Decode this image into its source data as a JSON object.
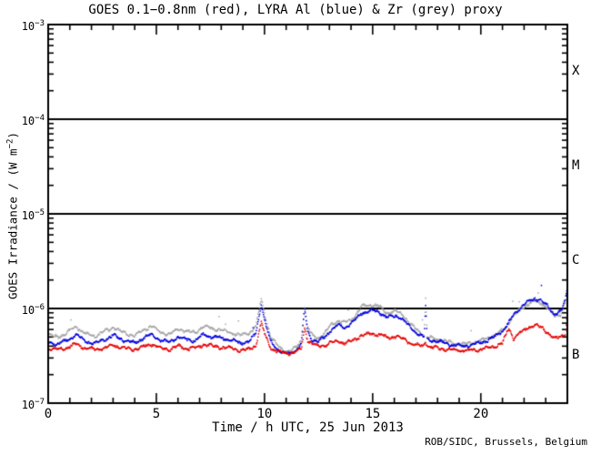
{
  "title": "GOES 0.1−0.8nm (red), LYRA Al (blue) & Zr (grey) proxy",
  "credit": "ROB/SIDC, Brussels, Belgium",
  "axes": {
    "x_label": "Time / h UTC, 25 Jun 2013",
    "y_label": {
      "prefix": "GOES Irradiance / (W m",
      "sup": "−2",
      "suffix": ")"
    },
    "x_tick_labels": [
      "0",
      "5",
      "10",
      "15",
      "20"
    ],
    "x_tick_values": [
      0,
      5,
      10,
      15,
      20
    ],
    "y_tick_base": "10",
    "y_tick_exponents": [
      "−3",
      "−4",
      "−5",
      "−6",
      "−7"
    ],
    "y_tick_values": [
      0.001,
      0.0001,
      1e-05,
      1e-06,
      1e-07
    ]
  },
  "flare_classes": [
    {
      "label": "X",
      "upper_exp": -3,
      "lower_exp": -4
    },
    {
      "label": "M",
      "upper_exp": -4,
      "lower_exp": -5
    },
    {
      "label": "C",
      "upper_exp": -5,
      "lower_exp": -6
    },
    {
      "label": "B",
      "upper_exp": -6,
      "lower_exp": -7
    }
  ],
  "colors": {
    "frame": "#000000",
    "text": "#000000",
    "background": "#ffffff",
    "goes_red": "#e60000",
    "lyra_al_blue": "#0000dd",
    "lyra_zr_grey": "#a6a6a6"
  },
  "chart_data": {
    "type": "scatter",
    "title": "GOES 0.1−0.8nm (red), LYRA Al (blue) & Zr (grey) proxy",
    "xlabel": "Time / h UTC, 25 Jun 2013",
    "ylabel": "GOES Irradiance / (W m−2)",
    "date": "25 Jun 2013",
    "x_range": [
      0,
      24
    ],
    "x_minor_step": 1,
    "y_scale": "log",
    "y_range": [
      1e-07,
      0.001
    ],
    "hlines": [
      0.0001,
      1e-05,
      1e-06
    ],
    "grid": false,
    "legend_position": "in-title",
    "style": {
      "dot_step_hours": 0.025,
      "dot_size_px": 1.5,
      "log_jitter": 0.02
    },
    "series": [
      {
        "name": "LYRA Zr proxy (grey)",
        "color": "#a6a6a6",
        "outlier_prob": 0.012,
        "points": [
          [
            0,
            5.3e-07
          ],
          [
            0.4,
            5e-07
          ],
          [
            0.8,
            5.4e-07
          ],
          [
            1.3,
            6.5e-07
          ],
          [
            1.7,
            5.4e-07
          ],
          [
            2.2,
            5.1e-07
          ],
          [
            2.6,
            5.7e-07
          ],
          [
            3.0,
            6.3e-07
          ],
          [
            3.5,
            5.5e-07
          ],
          [
            4.0,
            5.2e-07
          ],
          [
            4.5,
            6.1e-07
          ],
          [
            4.8,
            6.5e-07
          ],
          [
            5.2,
            5.6e-07
          ],
          [
            5.6,
            5.3e-07
          ],
          [
            6.0,
            6.1e-07
          ],
          [
            6.4,
            5.7e-07
          ],
          [
            6.8,
            5.6e-07
          ],
          [
            7.2,
            6.5e-07
          ],
          [
            7.6,
            6.1e-07
          ],
          [
            8.0,
            5.9e-07
          ],
          [
            8.5,
            5.5e-07
          ],
          [
            8.9,
            5.2e-07
          ],
          [
            9.3,
            5.5e-07
          ],
          [
            9.6,
            6.5e-07
          ],
          [
            9.85,
            1.25e-06
          ],
          [
            10.05,
            8e-07
          ],
          [
            10.3,
            5e-07
          ],
          [
            10.6,
            4e-07
          ],
          [
            10.9,
            3.6e-07
          ],
          [
            11.2,
            3.5e-07
          ],
          [
            11.5,
            4e-07
          ],
          [
            11.7,
            4.6e-07
          ],
          [
            11.85,
            1.05e-06
          ],
          [
            12.0,
            6.2e-07
          ],
          [
            12.2,
            5.2e-07
          ],
          [
            12.5,
            4.9e-07
          ],
          [
            12.8,
            5.5e-07
          ],
          [
            13.1,
            6.8e-07
          ],
          [
            13.4,
            7.4e-07
          ],
          [
            13.7,
            7e-07
          ],
          [
            14.1,
            8e-07
          ],
          [
            14.5,
            1.05e-06
          ],
          [
            14.9,
            1.1e-06
          ],
          [
            15.3,
            1.05e-06
          ],
          [
            15.7,
            9e-07
          ],
          [
            16.1,
            9.4e-07
          ],
          [
            16.4,
            8.6e-07
          ],
          [
            16.7,
            7e-07
          ],
          [
            17.0,
            6e-07
          ],
          [
            17.3,
            5.5e-07
          ],
          [
            17.38,
            5.2e-07
          ],
          [
            17.45,
            1.25e-06
          ],
          [
            17.52,
            5e-07
          ],
          [
            17.8,
            4.8e-07
          ],
          [
            18.2,
            4.6e-07
          ],
          [
            18.7,
            4.3e-07
          ],
          [
            19.2,
            4.2e-07
          ],
          [
            19.7,
            4.4e-07
          ],
          [
            20.2,
            4.7e-07
          ],
          [
            20.7,
            5.3e-07
          ],
          [
            21.1,
            6.2e-07
          ],
          [
            21.5,
            8.2e-07
          ],
          [
            21.9,
            1.02e-06
          ],
          [
            22.2,
            1.12e-06
          ],
          [
            22.5,
            1.2e-06
          ],
          [
            22.8,
            1.14e-06
          ],
          [
            23.1,
            1e-06
          ],
          [
            23.4,
            8.3e-07
          ],
          [
            23.7,
            8.8e-07
          ],
          [
            23.9,
            1.15e-06
          ],
          [
            24,
            1.6e-06
          ]
        ]
      },
      {
        "name": "LYRA Al proxy (blue)",
        "color": "#0000dd",
        "outlier_prob": 0.004,
        "points": [
          [
            0,
            4.4e-07
          ],
          [
            0.4,
            4.2e-07
          ],
          [
            0.8,
            4.5e-07
          ],
          [
            1.3,
            5.3e-07
          ],
          [
            1.7,
            4.5e-07
          ],
          [
            2.2,
            4.3e-07
          ],
          [
            2.6,
            4.7e-07
          ],
          [
            3.0,
            5.2e-07
          ],
          [
            3.5,
            4.6e-07
          ],
          [
            4.0,
            4.3e-07
          ],
          [
            4.5,
            5e-07
          ],
          [
            4.8,
            5.3e-07
          ],
          [
            5.2,
            4.6e-07
          ],
          [
            5.6,
            4.4e-07
          ],
          [
            6.0,
            5e-07
          ],
          [
            6.4,
            4.7e-07
          ],
          [
            6.8,
            4.6e-07
          ],
          [
            7.2,
            5.3e-07
          ],
          [
            7.6,
            5e-07
          ],
          [
            8.0,
            4.9e-07
          ],
          [
            8.5,
            4.6e-07
          ],
          [
            8.9,
            4.3e-07
          ],
          [
            9.3,
            4.5e-07
          ],
          [
            9.6,
            5.4e-07
          ],
          [
            9.85,
            1.12e-06
          ],
          [
            10.05,
            6.8e-07
          ],
          [
            10.3,
            4.4e-07
          ],
          [
            10.6,
            3.7e-07
          ],
          [
            10.9,
            3.4e-07
          ],
          [
            11.2,
            3.3e-07
          ],
          [
            11.5,
            3.7e-07
          ],
          [
            11.7,
            4.2e-07
          ],
          [
            11.85,
            9.8e-07
          ],
          [
            12.0,
            5.6e-07
          ],
          [
            12.2,
            4.7e-07
          ],
          [
            12.5,
            4.5e-07
          ],
          [
            12.8,
            5e-07
          ],
          [
            13.1,
            6e-07
          ],
          [
            13.4,
            6.6e-07
          ],
          [
            13.7,
            6.3e-07
          ],
          [
            14.1,
            7.2e-07
          ],
          [
            14.5,
            9e-07
          ],
          [
            14.9,
            9.5e-07
          ],
          [
            15.3,
            9.2e-07
          ],
          [
            15.7,
            8e-07
          ],
          [
            16.1,
            8.4e-07
          ],
          [
            16.4,
            7.7e-07
          ],
          [
            16.7,
            6.4e-07
          ],
          [
            17.0,
            5.6e-07
          ],
          [
            17.3,
            5.1e-07
          ],
          [
            17.38,
            4.9e-07
          ],
          [
            17.45,
            1.08e-06
          ],
          [
            17.52,
            4.7e-07
          ],
          [
            17.8,
            4.6e-07
          ],
          [
            18.2,
            4.4e-07
          ],
          [
            18.7,
            4.1e-07
          ],
          [
            19.2,
            4e-07
          ],
          [
            19.7,
            4.2e-07
          ],
          [
            20.2,
            4.5e-07
          ],
          [
            20.7,
            5.1e-07
          ],
          [
            21.1,
            6.1e-07
          ],
          [
            21.5,
            8.4e-07
          ],
          [
            21.9,
            1.06e-06
          ],
          [
            22.2,
            1.18e-06
          ],
          [
            22.5,
            1.28e-06
          ],
          [
            22.8,
            1.2e-06
          ],
          [
            23.1,
            1.05e-06
          ],
          [
            23.4,
            8.8e-07
          ],
          [
            23.7,
            9.3e-07
          ],
          [
            23.9,
            1.2e-06
          ],
          [
            24,
            1.7e-06
          ]
        ]
      },
      {
        "name": "GOES 0.1−0.8nm (red)",
        "color": "#e60000",
        "outlier_prob": 0,
        "points": [
          [
            0,
            3.8e-07
          ],
          [
            0.4,
            3.7e-07
          ],
          [
            0.8,
            3.8e-07
          ],
          [
            1.3,
            4.2e-07
          ],
          [
            1.7,
            3.8e-07
          ],
          [
            2.2,
            3.7e-07
          ],
          [
            2.6,
            3.8e-07
          ],
          [
            3.0,
            4.1e-07
          ],
          [
            3.5,
            3.8e-07
          ],
          [
            4.0,
            3.7e-07
          ],
          [
            4.5,
            4e-07
          ],
          [
            4.8,
            4.2e-07
          ],
          [
            5.2,
            3.8e-07
          ],
          [
            5.6,
            3.7e-07
          ],
          [
            6.0,
            4e-07
          ],
          [
            6.4,
            3.8e-07
          ],
          [
            6.8,
            3.8e-07
          ],
          [
            7.2,
            4.2e-07
          ],
          [
            7.6,
            4e-07
          ],
          [
            8.0,
            3.9e-07
          ],
          [
            8.5,
            3.8e-07
          ],
          [
            8.9,
            3.6e-07
          ],
          [
            9.3,
            3.7e-07
          ],
          [
            9.6,
            4.1e-07
          ],
          [
            9.85,
            7e-07
          ],
          [
            10.05,
            5e-07
          ],
          [
            10.3,
            3.8e-07
          ],
          [
            10.6,
            3.5e-07
          ],
          [
            10.9,
            3.4e-07
          ],
          [
            11.2,
            3.4e-07
          ],
          [
            11.5,
            3.5e-07
          ],
          [
            11.7,
            3.7e-07
          ],
          [
            11.85,
            6.3e-07
          ],
          [
            12.0,
            4.6e-07
          ],
          [
            12.2,
            4.2e-07
          ],
          [
            12.5,
            4e-07
          ],
          [
            12.8,
            4.1e-07
          ],
          [
            13.1,
            4.4e-07
          ],
          [
            13.4,
            4.5e-07
          ],
          [
            13.7,
            4.3e-07
          ],
          [
            14.1,
            4.6e-07
          ],
          [
            14.5,
            5.2e-07
          ],
          [
            14.9,
            5.4e-07
          ],
          [
            15.3,
            5.3e-07
          ],
          [
            15.7,
            4.9e-07
          ],
          [
            16.1,
            5.1e-07
          ],
          [
            16.4,
            4.8e-07
          ],
          [
            16.7,
            4.4e-07
          ],
          [
            17.0,
            4.1e-07
          ],
          [
            17.3,
            4e-07
          ],
          [
            17.45,
            4.4e-07
          ],
          [
            17.6,
            3.9e-07
          ],
          [
            18.0,
            3.8e-07
          ],
          [
            18.5,
            3.7e-07
          ],
          [
            19.0,
            3.6e-07
          ],
          [
            19.5,
            3.6e-07
          ],
          [
            20.0,
            3.7e-07
          ],
          [
            20.5,
            3.9e-07
          ],
          [
            21.0,
            4.3e-07
          ],
          [
            21.3,
            6.2e-07
          ],
          [
            21.5,
            4.8e-07
          ],
          [
            21.8,
            5.5e-07
          ],
          [
            22.2,
            6.3e-07
          ],
          [
            22.5,
            6.6e-07
          ],
          [
            22.8,
            6.3e-07
          ],
          [
            23.1,
            5.6e-07
          ],
          [
            23.4,
            4.8e-07
          ],
          [
            23.7,
            5e-07
          ],
          [
            23.9,
            5.5e-07
          ],
          [
            24,
            8.5e-07
          ]
        ]
      }
    ]
  }
}
